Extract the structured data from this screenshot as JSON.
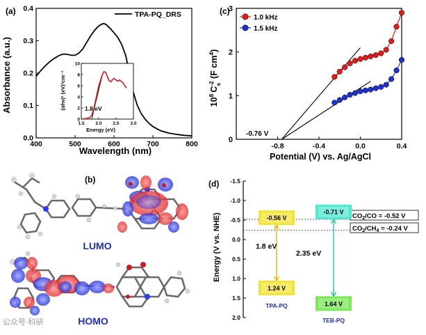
{
  "chart_data": [
    {
      "type": "line",
      "panel_label": "(a)",
      "legend": "TPA-PQ_DRS",
      "xlabel": "Wavelength (nm)",
      "ylabel": "Absorbance (a.u.)",
      "xlim": [
        400,
        800
      ],
      "ylim": [
        0.0,
        0.4
      ],
      "xticks": [
        "400",
        "500",
        "600",
        "700",
        "800"
      ],
      "yticks": [
        "0.0",
        "0.1",
        "0.2",
        "0.3",
        "0.4"
      ],
      "series": [
        {
          "name": "TPA-PQ_DRS",
          "color": "#000000",
          "x": [
            400,
            410,
            420,
            430,
            440,
            450,
            460,
            470,
            480,
            490,
            500,
            510,
            520,
            530,
            540,
            550,
            560,
            570,
            575,
            580,
            590,
            600,
            610,
            620,
            630,
            640,
            650,
            660,
            670,
            680,
            690,
            700,
            720,
            740,
            760,
            780,
            800
          ],
          "y": [
            0.19,
            0.205,
            0.218,
            0.23,
            0.24,
            0.248,
            0.255,
            0.259,
            0.258,
            0.255,
            0.255,
            0.262,
            0.275,
            0.295,
            0.315,
            0.332,
            0.345,
            0.352,
            0.353,
            0.35,
            0.338,
            0.325,
            0.31,
            0.288,
            0.255,
            0.2,
            0.14,
            0.1,
            0.075,
            0.058,
            0.045,
            0.035,
            0.022,
            0.015,
            0.011,
            0.008,
            0.006
          ]
        }
      ],
      "inset": {
        "type": "line",
        "xlabel": "Energy (eV)",
        "ylabel": "(αhν)² (eV)²cm⁻²",
        "xlim": [
          1.5,
          3.0
        ],
        "ylim": [
          0,
          10
        ],
        "xticks": [
          "1.5",
          "2.0",
          "2.5",
          "3.0"
        ],
        "yticks": [
          "0",
          "2",
          "4",
          "6",
          "8",
          "10"
        ],
        "annotation": "1.8 eV",
        "series": [
          {
            "name": "Tauc",
            "color": "#d21e1e",
            "x": [
              1.55,
              1.65,
              1.75,
              1.8,
              1.85,
              1.9,
              1.95,
              2.0,
              2.05,
              2.1,
              2.15,
              2.2,
              2.25,
              2.3,
              2.35,
              2.4,
              2.45,
              2.5,
              2.55,
              2.6,
              2.65,
              2.7,
              2.75,
              2.8
            ],
            "y": [
              0.05,
              0.1,
              0.3,
              0.7,
              1.6,
              3.0,
              4.5,
              5.9,
              6.9,
              7.9,
              8.5,
              8.4,
              7.6,
              6.9,
              6.7,
              7.1,
              7.3,
              7.0,
              6.8,
              7.0,
              6.8,
              6.5,
              6.0,
              5.6
            ]
          }
        ],
        "fit_line": {
          "x": [
            1.8,
            2.12
          ],
          "y": [
            0,
            8.3
          ]
        }
      }
    },
    {
      "type": "scatter",
      "panel_label": "(c)",
      "xlabel": "Potential (V) vs. Ag/AgCl",
      "ylabel": "10⁸ C_s⁻² (F cm⁴)",
      "ylabel_parts": {
        "base": "10",
        "exp1": "8",
        "c": "C",
        "sub": "s",
        "exp2": "-2",
        "units": " (F cm",
        "exp3": "4",
        "close": ")"
      },
      "xlim": [
        -1.2,
        0.4
      ],
      "ylim": [
        0,
        3
      ],
      "xticks": [
        "-0.8",
        "-0.4",
        "0.0",
        "0.4"
      ],
      "yticks": [
        "0",
        "1",
        "2",
        "3"
      ],
      "annotation": "-0.76 V",
      "series": [
        {
          "name": "1.0 kHz",
          "color": "#e31a1c",
          "x": [
            -0.25,
            -0.2,
            -0.15,
            -0.1,
            -0.05,
            0.0,
            0.05,
            0.1,
            0.15,
            0.2,
            0.25,
            0.3,
            0.35,
            0.4
          ],
          "y": [
            1.43,
            1.55,
            1.65,
            1.74,
            1.8,
            1.84,
            1.87,
            1.9,
            1.93,
            1.97,
            2.05,
            2.25,
            2.58,
            2.9
          ]
        },
        {
          "name": "1.5 kHz",
          "color": "#1f2fd0",
          "x": [
            -0.25,
            -0.2,
            -0.15,
            -0.1,
            -0.05,
            0.0,
            0.05,
            0.1,
            0.15,
            0.2,
            0.25,
            0.3,
            0.35,
            0.4
          ],
          "y": [
            0.84,
            0.9,
            0.96,
            1.02,
            1.06,
            1.1,
            1.12,
            1.14,
            1.17,
            1.2,
            1.25,
            1.38,
            1.58,
            1.82
          ]
        }
      ],
      "fit_lines": [
        {
          "x": [
            -0.76,
            0.0
          ],
          "y": [
            0,
            2.1
          ]
        },
        {
          "x": [
            -0.76,
            0.1
          ],
          "y": [
            0,
            1.33
          ]
        }
      ]
    },
    {
      "type": "diagram",
      "panel_label": "(d)",
      "ylabel": "Energy (V vs. NHE)",
      "ylim": [
        -1.5,
        2.0
      ],
      "yticks": [
        "-1.5",
        "-1.0",
        "-0.5",
        "0.0",
        "0.5",
        "1.0",
        "1.5",
        "2.0"
      ],
      "levels": [
        {
          "material": "TPA-PQ",
          "cb": -0.56,
          "cb_label": "-0.56 V",
          "vb": 1.24,
          "vb_label": "1.24 V",
          "gap_label": "1.8 eV",
          "cb_color": "#f4e33a",
          "vb_color": "#f4e33a",
          "arrow_color": "#f0b400"
        },
        {
          "material": "TEB-PQ",
          "cb": -0.71,
          "cb_label": "-0.71 V",
          "vb": 1.64,
          "vb_label": "1.64 V",
          "gap_label": "2.35 eV",
          "cb_color": "#52e8cf",
          "vb_color": "#7be85a",
          "arrow_color": "#2bc0b0"
        }
      ],
      "redox": [
        {
          "label_base": "CO",
          "label_sub": "2",
          "label_rest": "/CO",
          "value_text": " = -0.52 V",
          "value": -0.52
        },
        {
          "label_base": "CO",
          "label_sub": "2",
          "label_rest": "/CH",
          "label_sub2": "4",
          "value_text": " = -0.24 V",
          "value": -0.24
        }
      ]
    }
  ],
  "panel_b": {
    "panel_label": "(b)",
    "lumo_label": "LUMO",
    "homo_label": "HOMO"
  },
  "watermark": "公众号·科研"
}
